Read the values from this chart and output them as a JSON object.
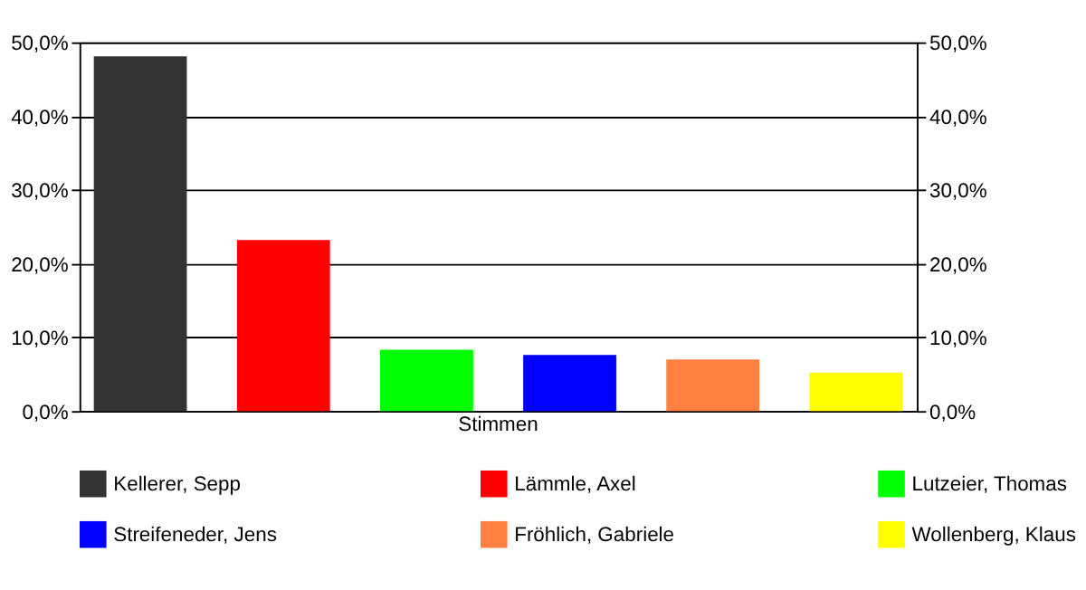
{
  "chart_data": {
    "type": "bar",
    "categories": [
      "Stimmen"
    ],
    "series": [
      {
        "name": "Kellerer, Sepp",
        "color": "#333333",
        "values": [
          48.1
        ]
      },
      {
        "name": "Lämmle, Axel",
        "color": "#ff0000",
        "values": [
          23.2
        ]
      },
      {
        "name": "Lutzeier, Thomas",
        "color": "#00ff00",
        "values": [
          8.3
        ]
      },
      {
        "name": "Streifeneder, Jens",
        "color": "#0000ff",
        "values": [
          7.6
        ]
      },
      {
        "name": "Fröhlich, Gabriele",
        "color": "#ff8040",
        "values": [
          7.0
        ]
      },
      {
        "name": "Wollenberg, Klaus",
        "color": "#ffff00",
        "values": [
          5.2
        ]
      }
    ],
    "ylim": [
      0,
      50
    ],
    "yticks": [
      {
        "value": 0,
        "label": "0,0%"
      },
      {
        "value": 10,
        "label": "10,0%"
      },
      {
        "value": 20,
        "label": "20,0%"
      },
      {
        "value": 30,
        "label": "30,0%"
      },
      {
        "value": 40,
        "label": "40,0%"
      },
      {
        "value": 50,
        "label": "50,0%"
      }
    ],
    "grid": "y",
    "legend": "bottom"
  }
}
